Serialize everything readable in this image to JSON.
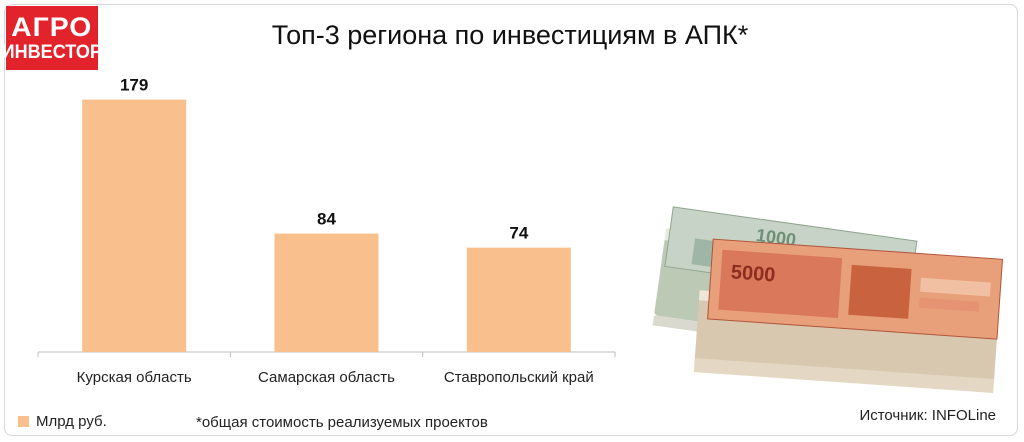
{
  "logo": {
    "line1": "АГРО",
    "line2": "ИНВЕСТОР"
  },
  "chart_data": {
    "type": "bar",
    "title": "Топ-3 региона по инвестициям в АПК*",
    "categories": [
      "Курская область",
      "Самарская область",
      "Ставропольский край"
    ],
    "series": [
      {
        "name": "Млрд руб.",
        "values": [
          179,
          84,
          74
        ]
      }
    ],
    "data_labels": [
      "179",
      "84",
      "74"
    ],
    "bar_color": "#f9c08e",
    "legend_position": "bottom-left",
    "grid": false,
    "ylim": [
      0,
      200
    ]
  },
  "footnote": "*общая стоимость реализуемых проектов",
  "source": "Источник: INFOLine",
  "illustration": {
    "icon": "ruble-banknotes-stack"
  }
}
